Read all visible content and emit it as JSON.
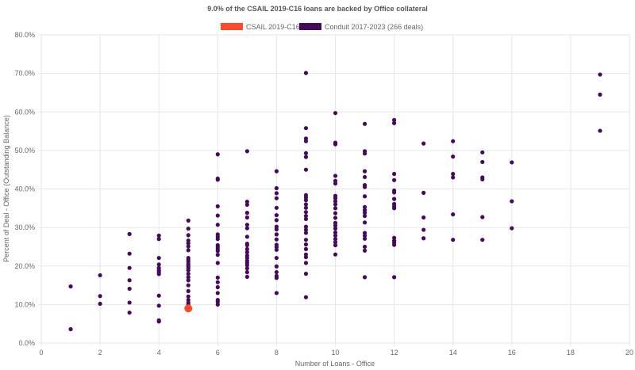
{
  "chart_data": {
    "type": "scatter",
    "title": "9.0% of the CSAIL 2019-C16 loans are backed by Office collateral",
    "xlabel": "Number of Loans - Office",
    "ylabel": "Percent of Deal - Office (Outstanding Balance)",
    "xlim": [
      0,
      20
    ],
    "ylim": [
      0,
      80
    ],
    "grid": true,
    "legend_placement": "top-center",
    "x_ticks": [
      "0",
      "2",
      "4",
      "6",
      "8",
      "10",
      "12",
      "14",
      "16",
      "18",
      "20"
    ],
    "y_ticks": [
      "0.0%",
      "10.0%",
      "20.0%",
      "30.0%",
      "40.0%",
      "50.0%",
      "60.0%",
      "70.0%",
      "80.0%"
    ],
    "series": [
      {
        "name": "CSAIL 2019-C16",
        "color": "#ff4a2a",
        "points": [
          [
            5,
            9.0
          ]
        ]
      },
      {
        "name": "Conduit 2017-2023 (266 deals)",
        "color": "#450a5c",
        "points_by_x": {
          "1": [
            14.7,
            3.6
          ],
          "2": [
            17.6,
            12.2,
            10.2
          ],
          "3": [
            28.3,
            23.2,
            19.5,
            16.3,
            14.1,
            10.5,
            7.9
          ],
          "4": [
            27.9,
            27.0,
            22.1,
            20.4,
            19.5,
            18.9,
            18.4,
            17.9,
            12.3,
            9.7,
            5.9,
            5.6
          ],
          "5": [
            31.8,
            29.7,
            28.0,
            26.6,
            25.9,
            25.1,
            24.1,
            22.1,
            21.6,
            21.1,
            20.5,
            20.0,
            19.5,
            18.9,
            18.0,
            17.1,
            16.3,
            15.0,
            13.5,
            12.1,
            11.2,
            10.5,
            10.0
          ],
          "6": [
            49.0,
            42.7,
            42.4,
            35.5,
            33.1,
            30.7,
            28.2,
            27.6,
            27.0,
            25.4,
            24.9,
            24.4,
            23.9,
            22.9,
            20.8,
            17.0,
            15.8,
            14.5,
            13.0,
            11.2,
            10.7,
            10.0
          ],
          "7": [
            49.8,
            36.7,
            35.9,
            33.8,
            32.6,
            30.7,
            29.8,
            27.6,
            25.8,
            25.4,
            24.4,
            23.6,
            22.7,
            22.1,
            21.4,
            20.8,
            20.2,
            19.4,
            18.4,
            17.2
          ],
          "8": [
            44.6,
            40.2,
            38.9,
            37.6,
            35.1,
            33.2,
            31.9,
            30.2,
            29.5,
            28.2,
            26.9,
            25.5,
            24.9,
            24.2,
            22.1,
            19.9,
            18.4,
            17.4,
            16.9,
            13.0
          ],
          "9": [
            70.1,
            55.8,
            53.1,
            52.4,
            49.3,
            48.3,
            45.0,
            38.4,
            37.8,
            37.1,
            36.0,
            35.1,
            34.0,
            33.0,
            32.2,
            30.2,
            29.4,
            28.6,
            26.8,
            25.6,
            24.4,
            23.0,
            22.3,
            20.8,
            18.0,
            11.9
          ],
          "10": [
            59.7,
            52.0,
            51.6,
            43.4,
            42.1,
            41.4,
            38.2,
            37.6,
            36.8,
            36.0,
            35.0,
            33.7,
            32.5,
            31.2,
            30.5,
            29.7,
            28.7,
            27.9,
            27.0,
            26.2,
            25.4,
            23.0
          ],
          "11": [
            56.9,
            49.8,
            49.2,
            44.6,
            43.1,
            41.0,
            40.5,
            38.1,
            35.3,
            34.5,
            33.8,
            33.0,
            31.3,
            28.6,
            27.9,
            27.1,
            25.0,
            24.0,
            17.1
          ],
          "12": [
            57.9,
            57.1,
            43.9,
            42.3,
            39.6,
            39.1,
            37.4,
            36.1,
            35.5,
            35.0,
            27.3,
            26.6,
            26.1,
            25.5,
            17.1
          ],
          "13": [
            51.8,
            39.0,
            32.6,
            29.4,
            27.2
          ],
          "14": [
            52.4,
            48.4,
            43.9,
            43.0,
            33.4,
            26.8
          ],
          "15": [
            49.5,
            47.0,
            43.0,
            42.5,
            32.7,
            26.8
          ],
          "16": [
            46.9,
            36.8,
            29.8
          ],
          "19": [
            69.7,
            64.5,
            55.1
          ]
        }
      }
    ]
  }
}
